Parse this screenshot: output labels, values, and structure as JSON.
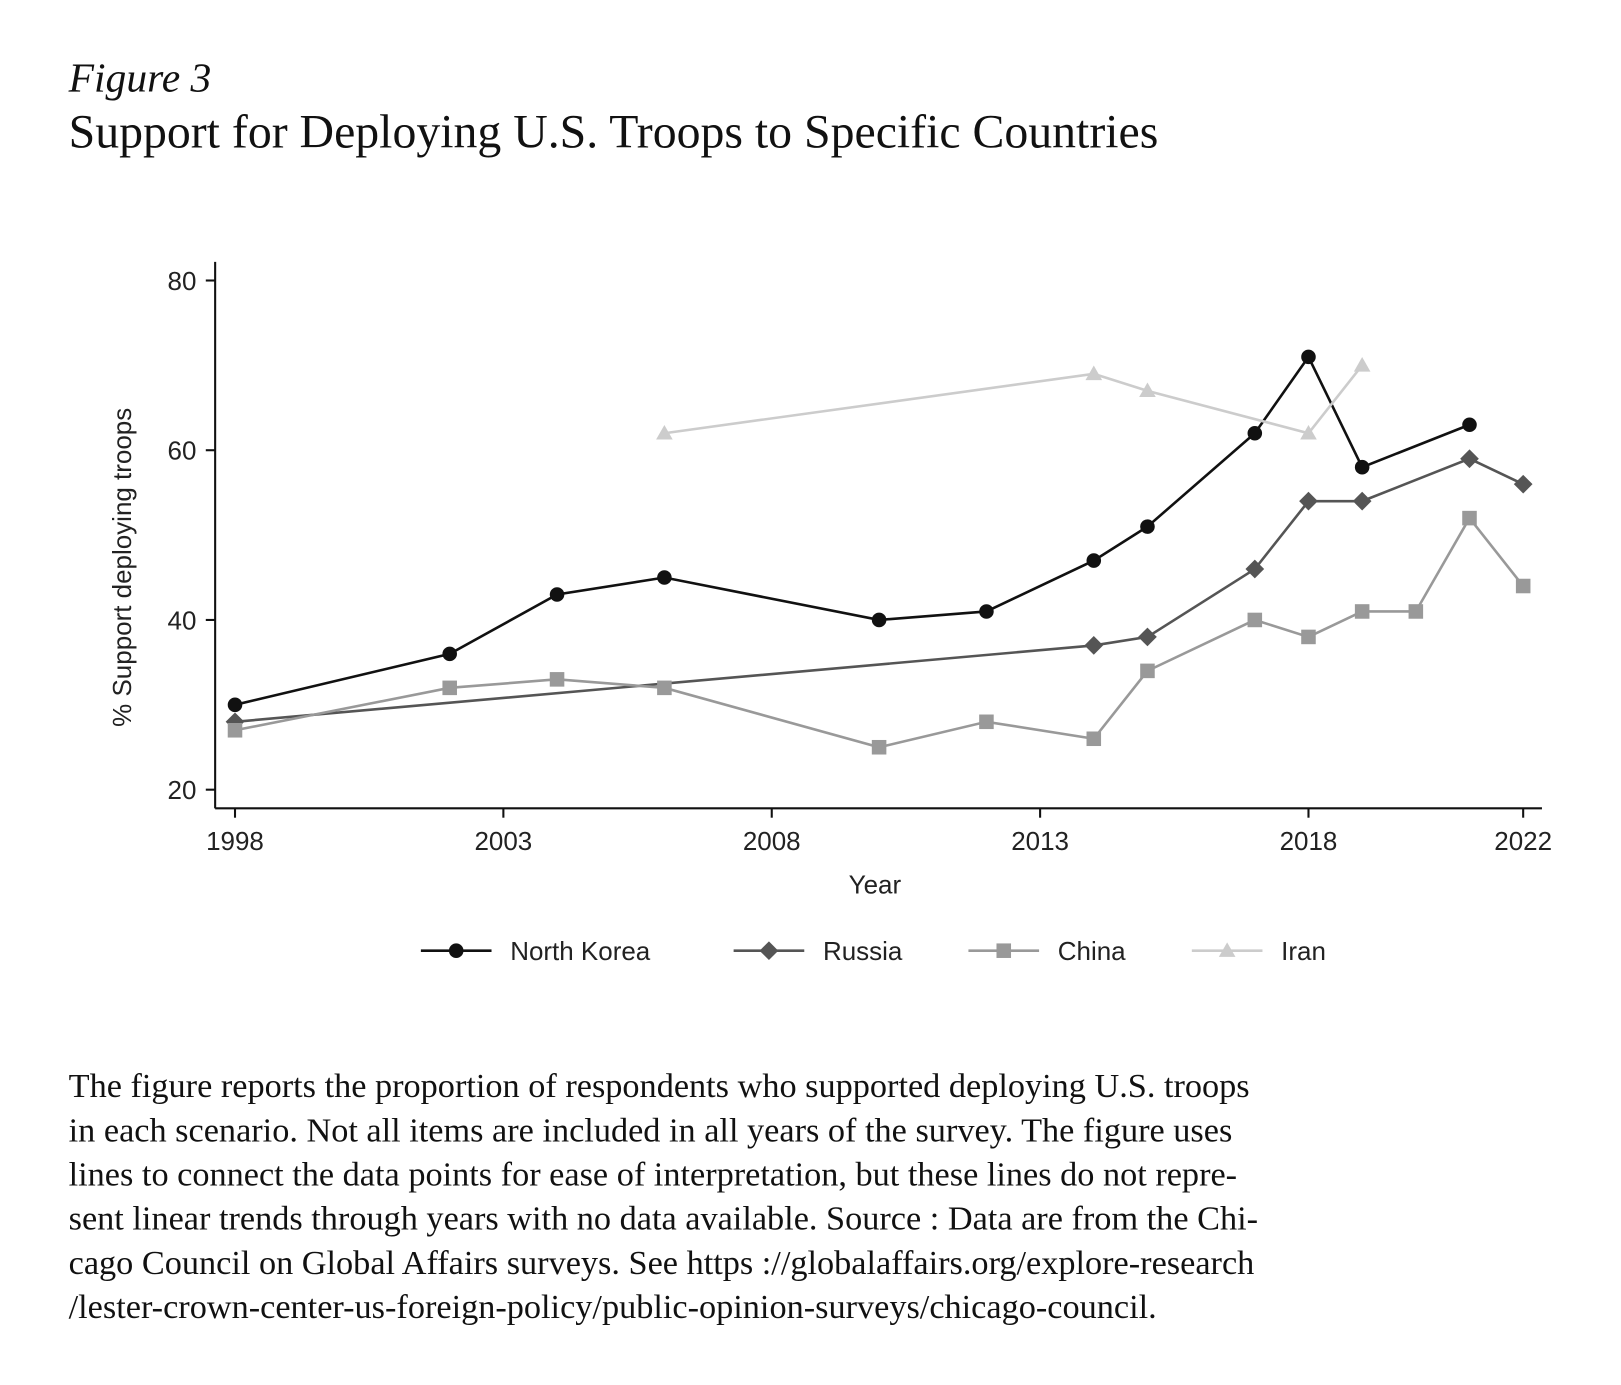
{
  "figure_label": "Figure 3",
  "title": "Support for Deploying U.S. Troops to Specific Countries",
  "caption_lines": [
    "The figure reports the proportion of respondents who supported deploying U.S. troops",
    "in each scenario. Not all items are included in all years of the survey. The figure uses",
    "lines to connect the data points for ease of interpretation, but these lines do not repre-",
    "sent linear trends through years with no data available. Source : Data are from the Chi-",
    "cago Council on Global Affairs surveys. See https ://globalaffairs.org/explore-research",
    "/lester-crown-center-us-foreign-policy/public-opinion-surveys/chicago-council."
  ],
  "chart_data": {
    "type": "line",
    "x_label": "Year",
    "y_label": "% Support deploying troops",
    "xlim": [
      1997.63,
      2022.35
    ],
    "xticks": [
      1998,
      2003,
      2008,
      2013,
      2018,
      2022
    ],
    "ylim": [
      17.8,
      82.2
    ],
    "yticks": [
      20,
      40,
      60,
      80
    ],
    "grid": false,
    "legend": "bottom",
    "series": [
      {
        "name": "North Korea",
        "color": "#111111",
        "marker": "circle",
        "x": [
          1998,
          2002,
          2004,
          2006,
          2010,
          2012,
          2014,
          2015,
          2017,
          2018,
          2019,
          2021
        ],
        "values": [
          30,
          36,
          43,
          45,
          40,
          41,
          47,
          51,
          62,
          71,
          58,
          63
        ]
      },
      {
        "name": "Russia",
        "color": "#555555",
        "marker": "diamond",
        "x": [
          1998,
          2014,
          2015,
          2017,
          2018,
          2019,
          2021,
          2022
        ],
        "values": [
          28,
          37,
          38,
          46,
          54,
          54,
          59,
          56
        ]
      },
      {
        "name": "China",
        "color": "#999999",
        "marker": "square",
        "x": [
          1998,
          2002,
          2004,
          2006,
          2010,
          2012,
          2014,
          2015,
          2017,
          2018,
          2019,
          2020,
          2021,
          2022
        ],
        "values": [
          27,
          32,
          33,
          32,
          25,
          28,
          26,
          34,
          40,
          38,
          41,
          41,
          52,
          44
        ]
      },
      {
        "name": "Iran",
        "color": "#cccccc",
        "marker": "triangle",
        "x": [
          2006,
          2014,
          2015,
          2018,
          2019
        ],
        "values": [
          62,
          69,
          67,
          62,
          70
        ]
      }
    ]
  }
}
